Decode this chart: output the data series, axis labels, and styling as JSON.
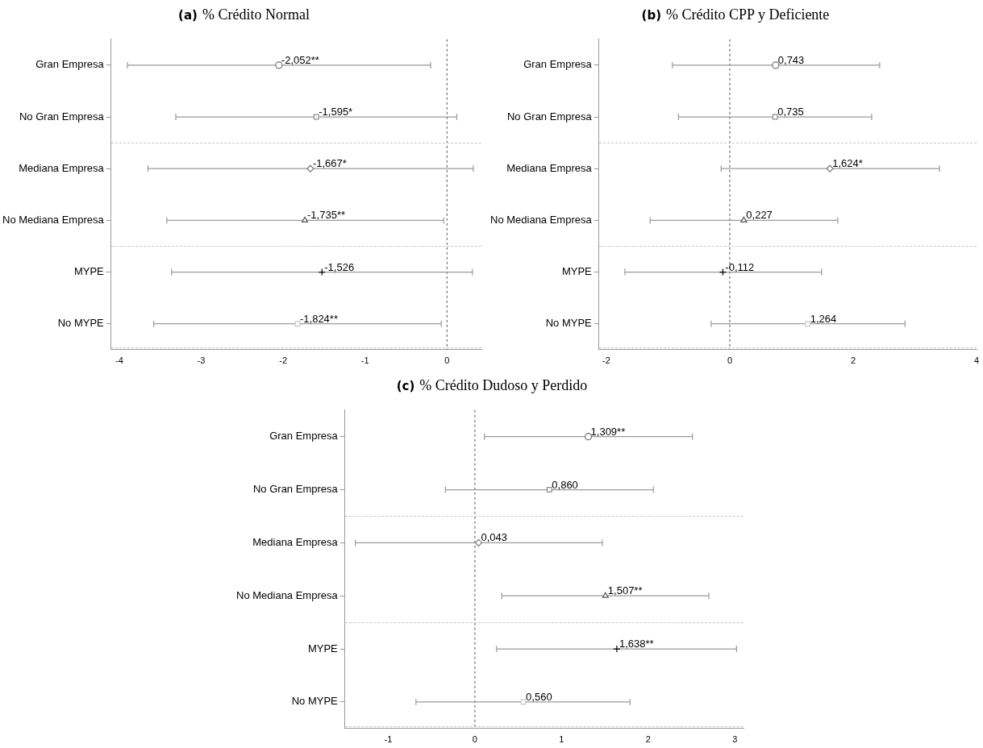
{
  "chart_data": [
    {
      "type": "scatter",
      "title": "(a) % Crédito Normal",
      "orientation": "horizontal",
      "categories": [
        "Gran Empresa",
        "No Gran Empresa",
        "Mediana Empresa",
        "No Mediana Empresa",
        "MYPE",
        "No MYPE"
      ],
      "xlim": [
        -4.1,
        0.42
      ],
      "xticks": [
        -4,
        -3,
        -2,
        -1,
        0
      ],
      "grid": false,
      "legend": false,
      "ref_lines": [
        {
          "axis": "x",
          "value": 0,
          "color": "#555555",
          "line_style": "dashed"
        }
      ],
      "series": [
        {
          "values": [
            -2.052,
            -1.595,
            -1.667,
            -1.735,
            -1.526,
            -1.824
          ],
          "colors": [
            "#6e6e6e",
            "#8c8c8c",
            "#7a7a7a",
            "#555555",
            "#000000",
            "#c8c8c8"
          ],
          "marker": [
            "circle",
            "square",
            "diamond",
            "triangle",
            "cross",
            "square"
          ],
          "errors": [
            [
              -3.9,
              -0.2
            ],
            [
              -3.31,
              0.12
            ],
            [
              -3.65,
              0.32
            ],
            [
              -3.42,
              -0.04
            ],
            [
              -3.36,
              0.31
            ],
            [
              -3.58,
              -0.07
            ]
          ],
          "value_labels": [
            "-2,052**",
            "-1,595*",
            "-1,667*",
            "-1,735**",
            "-1,526",
            "-1,824**"
          ]
        }
      ]
    },
    {
      "type": "scatter",
      "title": "(b) % Crédito CPP y Deficiente",
      "orientation": "horizontal",
      "categories": [
        "Gran Empresa",
        "No Gran Empresa",
        "Mediana Empresa",
        "No Mediana Empresa",
        "MYPE",
        "No MYPE"
      ],
      "xlim": [
        -2.12,
        4
      ],
      "xticks": [
        -2,
        0,
        2,
        4
      ],
      "grid": false,
      "legend": false,
      "ref_lines": [
        {
          "axis": "x",
          "value": 0,
          "color": "#555555",
          "line_style": "dashed"
        }
      ],
      "series": [
        {
          "values": [
            0.743,
            0.735,
            1.624,
            0.227,
            -0.112,
            1.264
          ],
          "colors": [
            "#6e6e6e",
            "#8c8c8c",
            "#7a7a7a",
            "#555555",
            "#000000",
            "#c8c8c8"
          ],
          "marker": [
            "circle",
            "square",
            "diamond",
            "triangle",
            "cross",
            "square"
          ],
          "errors": [
            [
              -0.93,
              2.43
            ],
            [
              -0.83,
              2.3
            ],
            [
              -0.14,
              3.4
            ],
            [
              -1.29,
              1.75
            ],
            [
              -1.7,
              1.49
            ],
            [
              -0.3,
              2.84
            ]
          ],
          "value_labels": [
            "0,743",
            "0,735",
            "1,624*",
            "0,227",
            "-0,112",
            "1,264"
          ]
        }
      ]
    },
    {
      "type": "scatter",
      "title": "(c) % Crédito Dudoso y Perdido",
      "orientation": "horizontal",
      "categories": [
        "Gran Empresa",
        "No Gran Empresa",
        "Mediana Empresa",
        "No Mediana Empresa",
        "MYPE",
        "No MYPE"
      ],
      "xlim": [
        -1.5,
        3.1
      ],
      "xticks": [
        -1,
        0,
        1,
        2,
        3
      ],
      "grid": false,
      "legend": false,
      "ref_lines": [
        {
          "axis": "x",
          "value": 0,
          "color": "#555555",
          "line_style": "dashed"
        }
      ],
      "series": [
        {
          "values": [
            1.309,
            0.86,
            0.043,
            1.507,
            1.638,
            0.56
          ],
          "colors": [
            "#6e6e6e",
            "#8c8c8c",
            "#7a7a7a",
            "#555555",
            "#000000",
            "#c8c8c8"
          ],
          "marker": [
            "circle",
            "square",
            "diamond",
            "triangle",
            "cross",
            "square"
          ],
          "errors": [
            [
              0.11,
              2.51
            ],
            [
              -0.34,
              2.06
            ],
            [
              -1.38,
              1.47
            ],
            [
              0.31,
              2.7
            ],
            [
              0.25,
              3.02
            ],
            [
              -0.68,
              1.79
            ]
          ],
          "value_labels": [
            "1,309**",
            "0,860",
            "0,043",
            "1,507**",
            "1,638**",
            "0,560"
          ]
        }
      ]
    }
  ]
}
